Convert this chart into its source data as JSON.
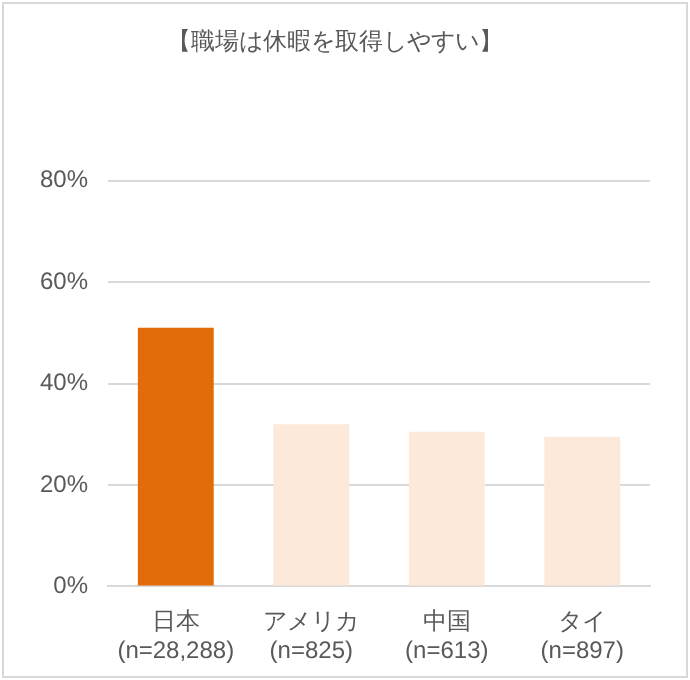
{
  "chart_data": {
    "type": "bar",
    "title": "【職場は休暇を取得しやすい】",
    "categories": [
      "日本\n(n=28,288)",
      "アメリカ\n(n=825)",
      "中国\n(n=613)",
      "タイ\n(n=897)"
    ],
    "values": [
      51,
      32,
      30.5,
      29.5
    ],
    "colors": [
      "#e36c0a",
      "#fde9d9",
      "#fde9d9",
      "#fde9d9"
    ],
    "ylim": [
      0,
      80
    ],
    "yticks": [
      {
        "value": 0,
        "label": "0%"
      },
      {
        "value": 20,
        "label": "20%"
      },
      {
        "value": 40,
        "label": "40%"
      },
      {
        "value": 60,
        "label": "60%"
      },
      {
        "value": 80,
        "label": "80%"
      }
    ],
    "grid": "y",
    "legend": false
  }
}
